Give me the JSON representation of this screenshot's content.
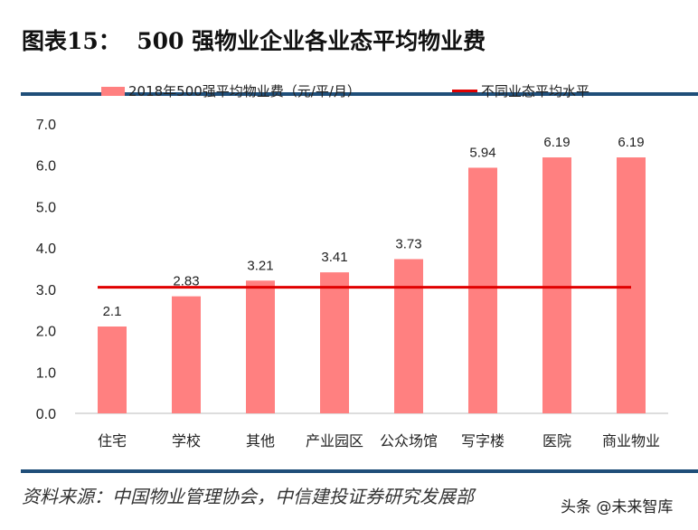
{
  "title": "图表15：  500 强物业企业各业态平均物业费",
  "legend": {
    "bar": "2018年500强平均物业费（元/平/月）",
    "line": "不同业态平均水平"
  },
  "source": "资料来源：中国物业管理协会，中信建投证券研究发展部",
  "watermark": "头条 @未来智库",
  "chart_data": {
    "type": "bar",
    "categories": [
      "住宅",
      "学校",
      "其他",
      "产业园区",
      "公众场馆",
      "写字楼",
      "医院",
      "商业物业"
    ],
    "series": [
      {
        "name": "2018年500强平均物业费（元/平/月）",
        "type": "bar",
        "values": [
          2.1,
          2.83,
          3.21,
          3.41,
          3.73,
          5.94,
          6.19,
          6.19
        ],
        "color": "#ff8080"
      },
      {
        "name": "不同业态平均水平",
        "type": "line",
        "value": 3.05,
        "color": "#e00000"
      }
    ],
    "data_labels": [
      "2.1",
      "2.83",
      "3.21",
      "3.41",
      "3.73",
      "5.94",
      "6.19",
      "6.19"
    ],
    "yticks": [
      "0.0",
      "1.0",
      "2.0",
      "3.0",
      "4.0",
      "5.0",
      "6.0",
      "7.0"
    ],
    "ylim": [
      0,
      7
    ],
    "grid": false,
    "legend_position": "top"
  }
}
